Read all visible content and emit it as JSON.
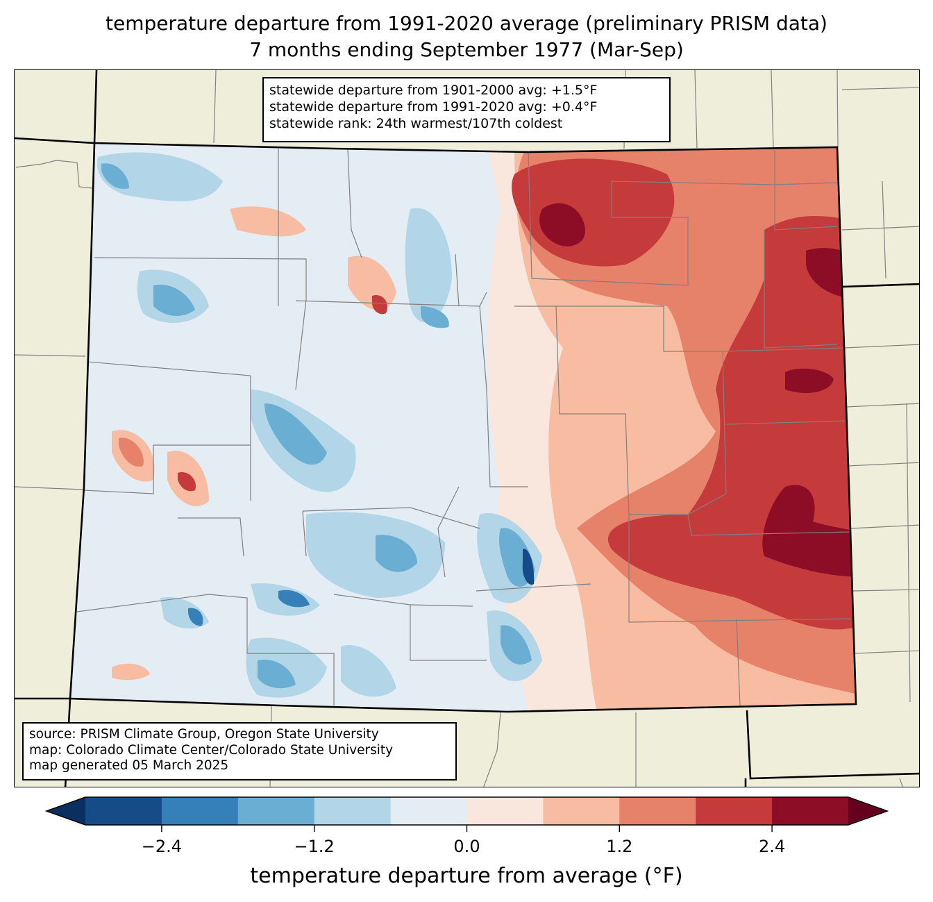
{
  "title": {
    "line1": "temperature departure from 1991-2020 average (preliminary PRISM data)",
    "line2": "7 months ending September 1977 (Mar-Sep)"
  },
  "stats": {
    "line1": "statewide departure from 1901-2000 avg: +1.5°F",
    "line2": "statewide departure from 1991-2020 avg: +0.4°F",
    "line3": "statewide rank: 24th warmest/107th coldest"
  },
  "credits": {
    "line1": "source: PRISM Climate Group, Oregon State University",
    "line2": "map: Colorado Climate Center/Colorado State University",
    "line3": "map generated 05 March 2025"
  },
  "colorbar": {
    "label": "temperature departure from average (°F)",
    "ticks": [
      "−2.4",
      "−1.2",
      "0.0",
      "1.2",
      "2.4"
    ],
    "tick_values": [
      -2.4,
      -1.2,
      0.0,
      1.2,
      2.4
    ],
    "levels": [
      -3.0,
      -2.4,
      -1.8,
      -1.2,
      -0.6,
      0.0,
      0.6,
      1.2,
      1.8,
      2.4,
      3.0
    ],
    "colors": [
      "#154c87",
      "#3580b9",
      "#6baed3",
      "#b2d5e7",
      "#e4edf4",
      "#f9e7de",
      "#f8bca2",
      "#e6816a",
      "#c53b3c",
      "#8c0d25"
    ],
    "under_color": "#0a2f61",
    "over_color": "#67001f"
  },
  "map": {
    "background_color": "#efeedb",
    "state_border_color": "#000000",
    "county_border_color": "#808080",
    "region": "Colorado",
    "west_summary": "mostly near to below average (blue)",
    "east_summary": "above average (red), warmest in northeast and southeast plains"
  }
}
